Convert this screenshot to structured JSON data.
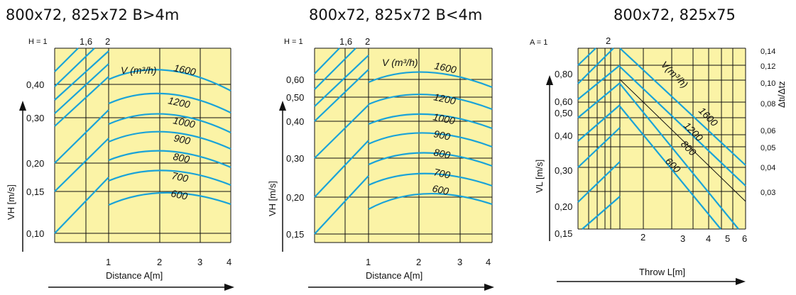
{
  "colors": {
    "plot_bg": "#fbf3a6",
    "curve": "#1aa3d8",
    "grid": "#111111"
  },
  "chart_data": [
    {
      "type": "line",
      "title": "800x72, 825x72 B>4m",
      "xlabel": "Distance A[m]",
      "ylabel": "VH [m/s]",
      "x_ticks": [
        "1",
        "2",
        "3",
        "4"
      ],
      "y_ticks": [
        "0,10",
        "0,15",
        "0,20",
        "0,30",
        "0,40"
      ],
      "top_label": "H = 1",
      "top_ticks": [
        "1,6",
        "2"
      ],
      "flow_label": "V (m³/h)",
      "series": [
        {
          "name": "1600",
          "x": [
            1,
            2,
            3,
            4
          ],
          "y": [
            0.38,
            0.44,
            0.42,
            0.36
          ]
        },
        {
          "name": "1200",
          "x": [
            1,
            2,
            3,
            4
          ],
          "y": [
            0.34,
            0.385,
            0.37,
            0.32
          ]
        },
        {
          "name": "1000",
          "x": [
            1,
            2,
            3,
            4
          ],
          "y": [
            0.3,
            0.335,
            0.32,
            0.28
          ]
        },
        {
          "name": "900",
          "x": [
            1,
            2,
            3,
            4
          ],
          "y": [
            0.27,
            0.295,
            0.285,
            0.25
          ]
        },
        {
          "name": "800",
          "x": [
            1,
            2,
            3,
            4
          ],
          "y": [
            0.225,
            0.245,
            0.238,
            0.215
          ]
        },
        {
          "name": "700",
          "x": [
            1,
            2,
            3,
            4
          ],
          "y": [
            0.19,
            0.205,
            0.2,
            0.182
          ]
        },
        {
          "name": "600",
          "x": [
            1,
            2,
            3,
            4
          ],
          "y": [
            0.165,
            0.175,
            0.17,
            0.155
          ]
        }
      ]
    },
    {
      "type": "line",
      "title": "800x72, 825x72 B<4m",
      "xlabel": "Distance A[m]",
      "ylabel": "VH [m/s]",
      "x_ticks": [
        "1",
        "2",
        "3",
        "4"
      ],
      "y_ticks": [
        "0,15",
        "0,20",
        "0,30",
        "0,40",
        "0,50",
        "0,60"
      ],
      "top_label": "H = 1",
      "top_ticks": [
        "1,6",
        "2"
      ],
      "flow_label": "V (m³/h)",
      "series": [
        {
          "name": "1600",
          "x": [
            1,
            2,
            3,
            4
          ],
          "y": [
            0.58,
            0.63,
            0.61,
            0.55
          ]
        },
        {
          "name": "1200",
          "x": [
            1,
            2,
            3,
            4
          ],
          "y": [
            0.5,
            0.54,
            0.52,
            0.47
          ]
        },
        {
          "name": "1000",
          "x": [
            1,
            2,
            3,
            4
          ],
          "y": [
            0.43,
            0.46,
            0.45,
            0.41
          ]
        },
        {
          "name": "900",
          "x": [
            1,
            2,
            3,
            4
          ],
          "y": [
            0.37,
            0.4,
            0.39,
            0.355
          ]
        },
        {
          "name": "800",
          "x": [
            1,
            2,
            3,
            4
          ],
          "y": [
            0.32,
            0.345,
            0.335,
            0.305
          ]
        },
        {
          "name": "700",
          "x": [
            1,
            2,
            3,
            4
          ],
          "y": [
            0.27,
            0.29,
            0.28,
            0.26
          ]
        },
        {
          "name": "600",
          "x": [
            1,
            2,
            3,
            4
          ],
          "y": [
            0.225,
            0.24,
            0.235,
            0.215
          ]
        }
      ]
    },
    {
      "type": "line",
      "title": "800x72, 825x75",
      "xlabel": "Throw L[m]",
      "ylabel": "VL [m/s]",
      "y2label": "Δtι/Δtz",
      "x_ticks": [
        "2",
        "3",
        "4",
        "5",
        "6"
      ],
      "y_ticks": [
        "0,15",
        "0,20",
        "0,30",
        "0,40",
        "0,50",
        "0,60",
        "0,80"
      ],
      "y2_ticks": [
        "0,03",
        "0,04",
        "0,05",
        "0,06",
        "0,08",
        "0,10",
        "0,12",
        "0,14"
      ],
      "top_label": "A = 1",
      "top_ticks": [
        "2"
      ],
      "flow_label": "V(m³/h)",
      "series": [
        {
          "name": "1600",
          "x": [
            1.5,
            6
          ],
          "y": [
            0.9,
            0.38
          ]
        },
        {
          "name": "1200",
          "x": [
            1.5,
            6
          ],
          "y": [
            0.75,
            0.3
          ]
        },
        {
          "name": "800",
          "x": [
            1.5,
            6
          ],
          "y": [
            0.6,
            0.22
          ]
        },
        {
          "name": "600",
          "x": [
            1.5,
            6
          ],
          "y": [
            0.48,
            0.17
          ]
        }
      ]
    }
  ]
}
